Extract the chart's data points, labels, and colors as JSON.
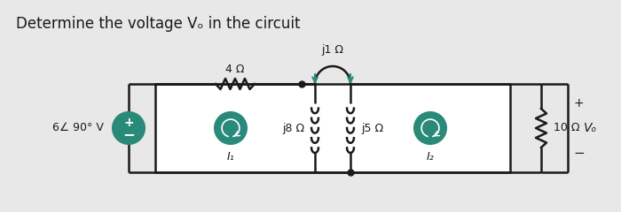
{
  "title": "Determine the voltage Vₒ in the circuit",
  "title_fontsize": 12,
  "bg_color": "#e8e8e8",
  "line_color": "#1a1a1a",
  "teal_color": "#2a8a7a",
  "box_fill": "#f0f0f0",
  "source_label": "6∠ 90° V",
  "I1_label": "I₁",
  "I2_label": "I₂",
  "R1_label": "4 Ω",
  "R2_label": "j8 Ω",
  "R3_label": "j5 Ω",
  "R4_label": "j1 Ω",
  "R5_label": "10 Ω",
  "Vo_label": "Vₒ",
  "figsize": [
    7.0,
    2.4
  ],
  "dpi": 100
}
